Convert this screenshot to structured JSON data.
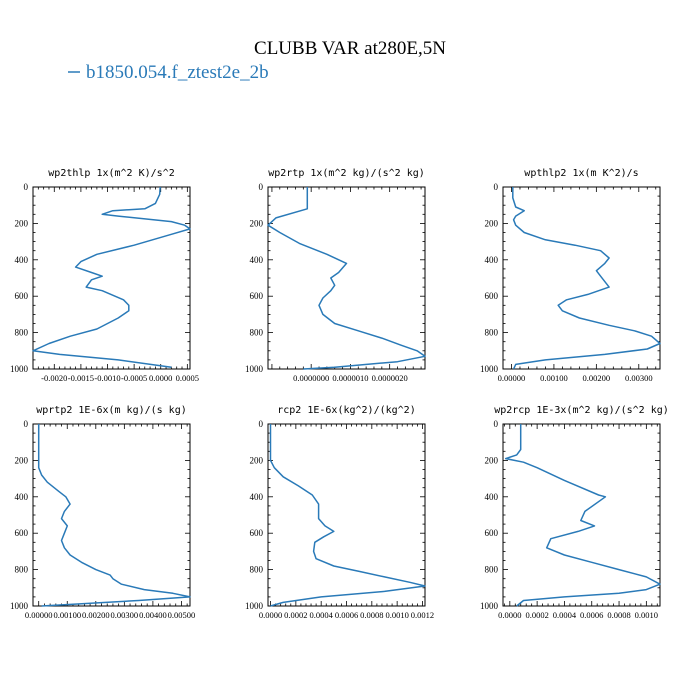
{
  "figure": {
    "title": "CLUBB VAR at280E,5N",
    "legend_label": "b1850.054.f_ztest2e_2b",
    "series_color": "#2a7ab8"
  },
  "chart_data": [
    {
      "type": "line",
      "title": "wp2thlp  1x(m^2 K)/s^2",
      "ylim": [
        1000,
        0
      ],
      "xlim": [
        -0.0024,
        0.00055
      ],
      "xticks": [
        -0.002,
        -0.0015,
        -0.001,
        -0.0005,
        0.0,
        0.0005
      ],
      "xtick_labels": [
        "-0.0020",
        "-0.0015",
        "-0.0010",
        "-0.0005",
        "0.0000",
        "0.0005"
      ],
      "yticks": [
        0,
        200,
        400,
        600,
        800,
        1000
      ],
      "ytick_labels": [
        "0",
        "200",
        "400",
        "600",
        "800",
        "1000"
      ],
      "series": [
        {
          "x": [
            -1e-05,
            -2e-05,
            -0.0001,
            -0.0003,
            -0.0009,
            -0.0011,
            -0.0008,
            0.0002,
            0.00045,
            0.00055,
            0.0002,
            -0.0005,
            -0.0012,
            -0.0015,
            -0.0016,
            -0.0013,
            -0.0011,
            -0.0013,
            -0.0014,
            -0.0011,
            -0.0007,
            -0.0006,
            -0.0006,
            -0.0008,
            -0.0012,
            -0.0017,
            -0.0021,
            -0.0024,
            -0.0019,
            -0.0008,
            0.0002
          ],
          "y": [
            0,
            40,
            90,
            120,
            130,
            150,
            160,
            190,
            210,
            230,
            260,
            320,
            370,
            410,
            440,
            470,
            490,
            510,
            550,
            570,
            620,
            650,
            680,
            720,
            780,
            820,
            860,
            900,
            920,
            950,
            990
          ]
        }
      ]
    },
    {
      "type": "line",
      "title": "wp2rtp  1x(m^2 kg)/(s^2 kg)",
      "ylim": [
        1000,
        0
      ],
      "xlim": [
        -1.1e-06,
        2.9e-06
      ],
      "xticks": [
        0.0,
        1e-06,
        2e-06
      ],
      "xtick_labels": [
        "0.0000000",
        "0.0000010",
        "0.0000020"
      ],
      "yticks": [
        0,
        200,
        400,
        600,
        800,
        1000
      ],
      "ytick_labels": [
        "0",
        "200",
        "400",
        "600",
        "800",
        "1000"
      ],
      "series": [
        {
          "x": [
            -1e-07,
            -1e-07,
            -1e-07,
            -9e-07,
            -1.1e-06,
            -8e-07,
            -3e-07,
            4e-07,
            9e-07,
            7e-07,
            5e-07,
            6e-07,
            5e-07,
            3e-07,
            2e-07,
            3e-07,
            6e-07,
            1.2e-06,
            1.8e-06,
            2.3e-06,
            2.7e-06,
            2.9e-06,
            2.2e-06,
            6e-07,
            -2e-07
          ],
          "y": [
            0,
            40,
            120,
            170,
            210,
            250,
            310,
            370,
            420,
            470,
            500,
            540,
            570,
            610,
            650,
            700,
            750,
            790,
            830,
            870,
            900,
            930,
            960,
            990,
            1000
          ]
        }
      ]
    },
    {
      "type": "line",
      "title": "wpthlp2  1x(m K^2)/s",
      "ylim": [
        1000,
        0
      ],
      "xlim": [
        -0.0002,
        0.0035
      ],
      "xticks": [
        0.0,
        0.001,
        0.002,
        0.003
      ],
      "xtick_labels": [
        "0.00000",
        "0.00100",
        "0.00200",
        "0.00300"
      ],
      "yticks": [
        0,
        200,
        400,
        600,
        800,
        1000
      ],
      "ytick_labels": [
        "0",
        "200",
        "400",
        "600",
        "800",
        "1000"
      ],
      "series": [
        {
          "x": [
            3e-05,
            3e-05,
            0.0001,
            0.0003,
            0.0001,
            5e-05,
            0.0001,
            0.0003,
            0.0008,
            0.0015,
            0.0021,
            0.0023,
            0.0022,
            0.002,
            0.0021,
            0.0023,
            0.0018,
            0.0013,
            0.0011,
            0.0012,
            0.0016,
            0.0023,
            0.0029,
            0.0033,
            0.0035,
            0.0032,
            0.0022,
            0.0008,
            0.0001,
            5e-05
          ],
          "y": [
            0,
            60,
            110,
            130,
            160,
            180,
            210,
            250,
            290,
            320,
            350,
            390,
            420,
            460,
            490,
            550,
            590,
            620,
            650,
            680,
            720,
            760,
            790,
            820,
            860,
            890,
            920,
            950,
            975,
            1000
          ]
        }
      ]
    },
    {
      "type": "line",
      "title": "wprtp2  1E-6x(m kg)/(s kg)",
      "ylim": [
        1000,
        0
      ],
      "xlim": [
        -0.0002,
        0.0053
      ],
      "xticks": [
        0.0,
        0.001,
        0.002,
        0.003,
        0.004,
        0.005
      ],
      "xtick_labels": [
        "0.00000",
        "0.00100",
        "0.00200",
        "0.00300",
        "0.00400",
        "0.00500"
      ],
      "yticks": [
        0,
        200,
        400,
        600,
        800,
        1000
      ],
      "ytick_labels": [
        "0",
        "200",
        "400",
        "600",
        "800",
        "1000"
      ],
      "series": [
        {
          "x": [
            0.0,
            0.0,
            0.0,
            0.0001,
            0.0003,
            0.0007,
            0.00095,
            0.0011,
            0.0009,
            0.0008,
            0.001,
            0.0009,
            0.0008,
            0.0009,
            0.0011,
            0.0015,
            0.002,
            0.0025,
            0.0026,
            0.0029,
            0.0037,
            0.0047,
            0.0053,
            0.0035,
            0.0012,
            0.0001
          ],
          "y": [
            0,
            120,
            240,
            280,
            320,
            370,
            400,
            440,
            480,
            520,
            560,
            600,
            640,
            680,
            720,
            760,
            800,
            830,
            850,
            880,
            910,
            930,
            950,
            970,
            990,
            1000
          ]
        }
      ]
    },
    {
      "type": "line",
      "title": "rcp2  1E-6x(kg^2)/(kg^2)",
      "ylim": [
        1000,
        0
      ],
      "xlim": [
        -2e-05,
        0.00122
      ],
      "xticks": [
        0.0,
        0.0002,
        0.0004,
        0.0006,
        0.0008,
        0.001,
        0.0012
      ],
      "xtick_labels": [
        "0.0000",
        "0.0002",
        "0.0004",
        "0.0006",
        "0.0008",
        "0.0010",
        "0.0012"
      ],
      "yticks": [
        0,
        200,
        400,
        600,
        800,
        1000
      ],
      "ytick_labels": [
        "0",
        "200",
        "400",
        "600",
        "800",
        "1000"
      ],
      "series": [
        {
          "x": [
            0.0,
            0.0,
            0.0,
            3e-05,
            0.0001,
            0.00022,
            0.00033,
            0.00038,
            0.00038,
            0.00043,
            0.0005,
            0.00042,
            0.00035,
            0.00034,
            0.00036,
            0.0005,
            0.0007,
            0.0009,
            0.0011,
            0.00122,
            0.0009,
            0.0004,
            0.0001,
            0.0
          ],
          "y": [
            0,
            120,
            200,
            240,
            290,
            340,
            390,
            440,
            520,
            560,
            590,
            620,
            650,
            700,
            740,
            780,
            810,
            840,
            870,
            890,
            920,
            950,
            980,
            1000
          ]
        }
      ]
    },
    {
      "type": "line",
      "title": "wp2rcp  1E-3x(m^2 kg)/(s^2 kg)",
      "ylim": [
        1000,
        0
      ],
      "xlim": [
        -5e-05,
        0.0011
      ],
      "xticks": [
        0.0,
        0.0002,
        0.0004,
        0.0006,
        0.0008,
        0.001
      ],
      "xtick_labels": [
        "0.0000",
        "0.0002",
        "0.0004",
        "0.0006",
        "0.0008",
        "0.0010"
      ],
      "yticks": [
        0,
        200,
        400,
        600,
        800,
        1000
      ],
      "ytick_labels": [
        "0",
        "200",
        "400",
        "600",
        "800",
        "1000"
      ],
      "series": [
        {
          "x": [
            8e-05,
            8e-05,
            8e-05,
            5e-05,
            -3e-05,
            0.0001,
            0.0002,
            0.0004,
            0.00065,
            0.0007,
            0.00055,
            0.00052,
            0.00062,
            0.0005,
            0.0003,
            0.00027,
            0.0004,
            0.0006,
            0.0008,
            0.001,
            0.0011,
            0.001,
            0.0008,
            0.0004,
            0.0001,
            5e-05
          ],
          "y": [
            0,
            100,
            140,
            170,
            190,
            210,
            240,
            310,
            390,
            400,
            480,
            530,
            560,
            590,
            630,
            680,
            720,
            760,
            800,
            840,
            880,
            910,
            930,
            950,
            970,
            1000
          ]
        }
      ]
    }
  ]
}
